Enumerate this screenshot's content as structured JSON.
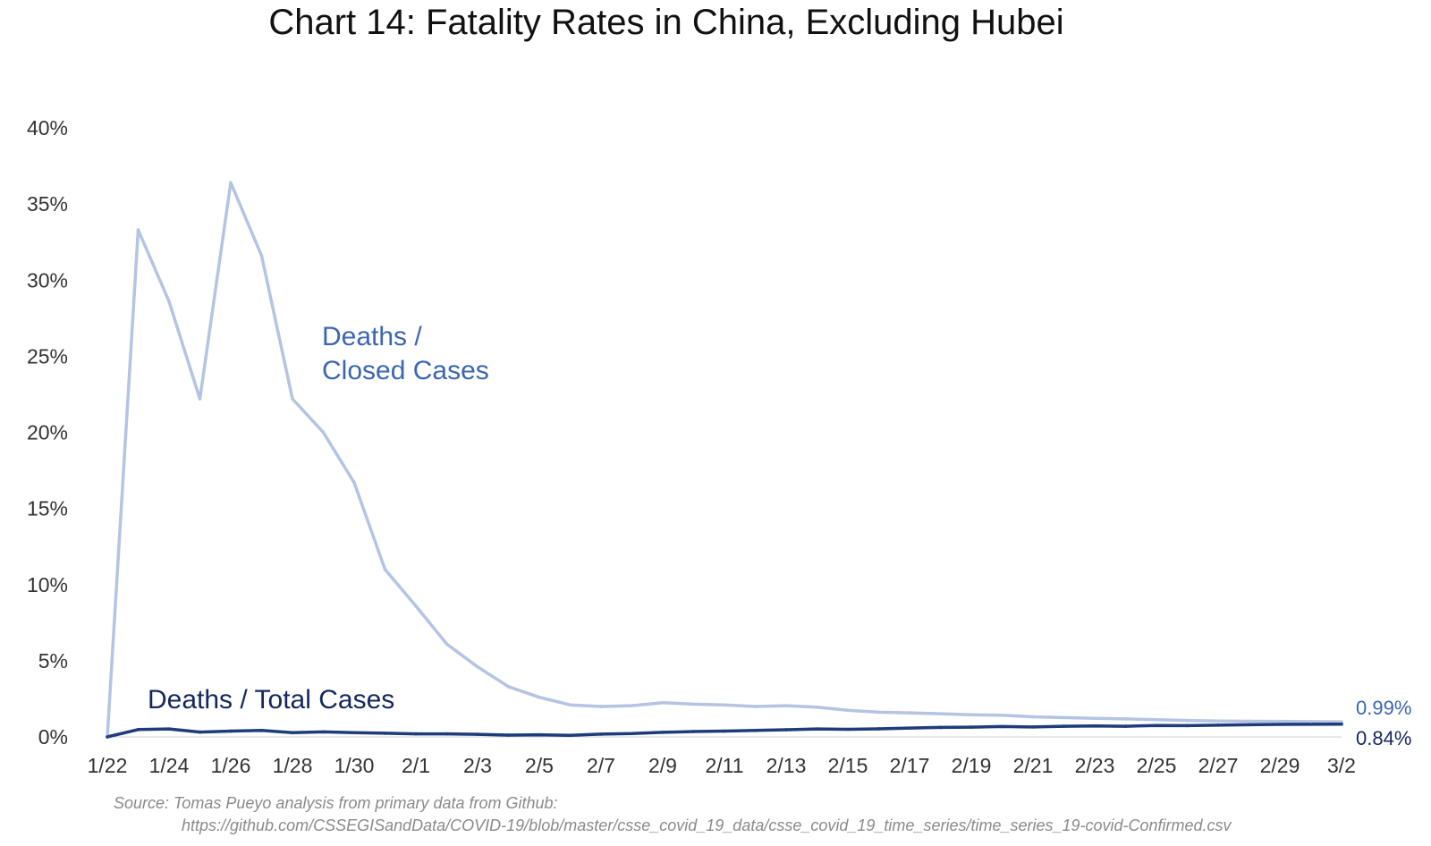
{
  "chart_data": {
    "type": "line",
    "title": "Chart 14: Fatality Rates in China, Excluding Hubei",
    "xlabel": "",
    "ylabel": "",
    "ylim": [
      0,
      40
    ],
    "y_tick_labels": [
      "0%",
      "5%",
      "10%",
      "15%",
      "20%",
      "25%",
      "30%",
      "35%",
      "40%"
    ],
    "x_tick_labels": [
      "1/22",
      "1/24",
      "1/26",
      "1/28",
      "1/30",
      "2/1",
      "2/3",
      "2/5",
      "2/7",
      "2/9",
      "2/11",
      "2/13",
      "2/15",
      "2/17",
      "2/19",
      "2/21",
      "2/23",
      "2/25",
      "2/27",
      "2/29",
      "3/2"
    ],
    "x": [
      "1/22",
      "1/23",
      "1/24",
      "1/25",
      "1/26",
      "1/27",
      "1/28",
      "1/29",
      "1/30",
      "1/31",
      "2/1",
      "2/2",
      "2/3",
      "2/4",
      "2/5",
      "2/6",
      "2/7",
      "2/8",
      "2/9",
      "2/10",
      "2/11",
      "2/12",
      "2/13",
      "2/14",
      "2/15",
      "2/16",
      "2/17",
      "2/18",
      "2/19",
      "2/20",
      "2/21",
      "2/22",
      "2/23",
      "2/24",
      "2/25",
      "2/26",
      "2/27",
      "2/28",
      "2/29",
      "3/1",
      "3/2"
    ],
    "series": [
      {
        "name": "Deaths / Closed Cases",
        "label": "Deaths /\nClosed Cases",
        "label_line1": "Deaths /",
        "label_line2": "Closed Cases",
        "color": "#b4c4e2",
        "label_color": "#3b66b0",
        "end_label": "0.99%",
        "values": [
          0,
          33.3,
          28.6,
          22.2,
          36.4,
          31.6,
          22.2,
          20.0,
          16.7,
          11.0,
          8.6,
          6.1,
          4.6,
          3.3,
          2.6,
          2.1,
          2.0,
          2.05,
          2.25,
          2.15,
          2.1,
          2.0,
          2.05,
          1.95,
          1.75,
          1.62,
          1.58,
          1.52,
          1.45,
          1.42,
          1.32,
          1.27,
          1.22,
          1.18,
          1.13,
          1.08,
          1.04,
          1.03,
          1.02,
          1.0,
          0.99
        ]
      },
      {
        "name": "Deaths / Total Cases",
        "label": "Deaths / Total Cases",
        "color": "#1f3c7a",
        "label_color": "#15275e",
        "end_label": "0.84%",
        "values": [
          0,
          0.48,
          0.52,
          0.32,
          0.38,
          0.42,
          0.28,
          0.33,
          0.28,
          0.24,
          0.2,
          0.2,
          0.17,
          0.12,
          0.14,
          0.1,
          0.18,
          0.22,
          0.3,
          0.35,
          0.38,
          0.42,
          0.47,
          0.52,
          0.5,
          0.53,
          0.58,
          0.62,
          0.64,
          0.68,
          0.65,
          0.7,
          0.72,
          0.7,
          0.75,
          0.74,
          0.77,
          0.8,
          0.82,
          0.83,
          0.84
        ]
      }
    ]
  },
  "source": {
    "line1": "Source: Tomas Pueyo analysis from primary data from Github:",
    "line2": "https://github.com/CSSEGISandData/COVID-19/blob/master/csse_covid_19_data/csse_covid_19_time_series/time_series_19-covid-Confirmed.csv"
  }
}
